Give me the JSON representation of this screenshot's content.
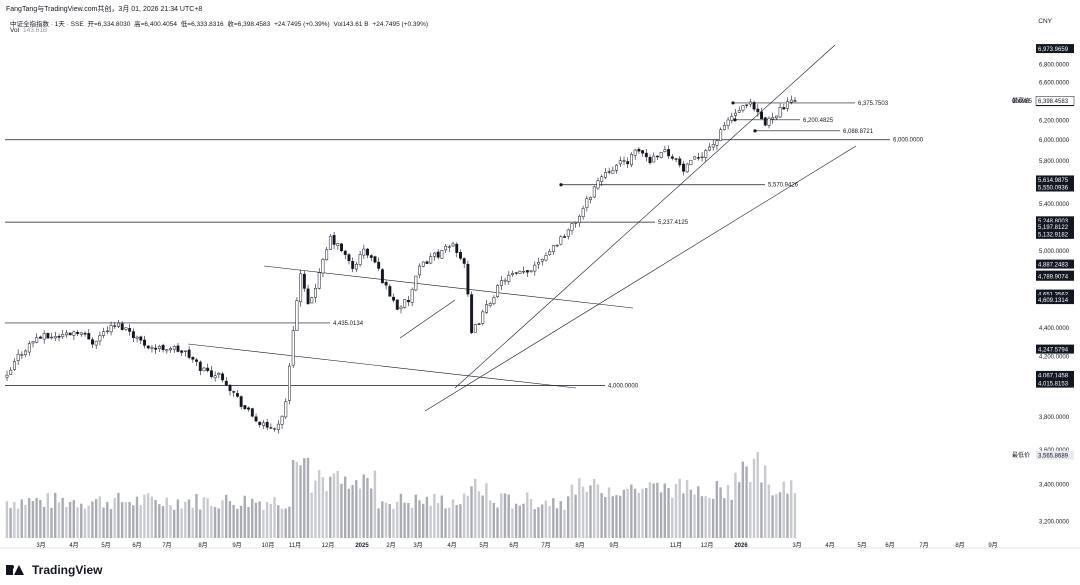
{
  "header": {
    "top_line": "FangTang与TradingView.com共创，3月 01, 2026 21:34 UTC+8",
    "instrument": "中证全指指数 · 1天 · SSE",
    "open": "开=6,334.8030",
    "high": "高=6,400.4054",
    "low": "低=6,333.8316",
    "close": "收=6,398.4583",
    "change": "+24.7495 (+0.39%)",
    "volume": "Vol143.61 B",
    "change2": "+24.7495 (+0.39%)",
    "vol_label": "Vol",
    "vol_value": "143.61B",
    "currency": "CNY"
  },
  "logo_text": "TradingView",
  "chart_data": {
    "type": "candlestick",
    "x_labels": [
      "3月",
      "4月",
      "5月",
      "6月",
      "7月",
      "8月",
      "9月",
      "10月",
      "11月",
      "12月",
      "2025",
      "2月",
      "3月",
      "4月",
      "5月",
      "6月",
      "7月",
      "8月",
      "9月",
      "11月",
      "12月",
      "2026",
      "3月",
      "4月",
      "5月",
      "6月",
      "7月",
      "8月",
      "9月"
    ],
    "y_ticks": [
      "6,800.0000",
      "6,600.0000",
      "6,200.0000",
      "6,000.0000",
      "5,800.0000",
      "5,400.0000",
      "5,000.0000",
      "4,400.0000",
      "4,200.0000",
      "3,800.0000",
      "3,600.0000",
      "3,400.0000",
      "3,200.0000"
    ],
    "ylim": [
      3100,
      7050
    ],
    "axis_badges": [
      {
        "label": "6,973.9659",
        "dark": true
      },
      {
        "label": "6,389.7554",
        "dark": true
      },
      {
        "label": "5,614.9875",
        "dark": true
      },
      {
        "label": "5,550.0936",
        "dark": true
      },
      {
        "label": "5,248.8003",
        "dark": true
      },
      {
        "label": "5,197.8122",
        "dark": true
      },
      {
        "label": "5,132.9182",
        "dark": true
      },
      {
        "label": "4,887.2483",
        "dark": true
      },
      {
        "label": "4,799.1779",
        "dark": true
      },
      {
        "label": "4,789.9074",
        "dark": true
      },
      {
        "label": "4,651.3562",
        "dark": true
      },
      {
        "label": "4,609.1314",
        "dark": true
      },
      {
        "label": "4,247.5794",
        "dark": true
      },
      {
        "label": "4,067.1458",
        "dark": true
      },
      {
        "label": "4,025.0859",
        "dark": true
      },
      {
        "label": "4,015.8153",
        "dark": true
      }
    ],
    "high_marker": {
      "label": "最高价",
      "value": "6,400.4054"
    },
    "last_marker": {
      "symbol": "000985",
      "value": "6,398.4583"
    },
    "low_marker": {
      "label": "最低价",
      "value": "3,565.8689"
    },
    "horizontal_lines": [
      {
        "value": 6000.0,
        "label": "6,000.0000"
      },
      {
        "value": 5237.4125,
        "label": "5,237.4125"
      },
      {
        "value": 4435.0134,
        "label": "4,435.0134"
      },
      {
        "value": 4000.0,
        "label": "4,000.0000"
      },
      {
        "value": 5570.9426,
        "label": "5,570.9426"
      },
      {
        "value": 6375.7503,
        "label": "6,375.7503"
      },
      {
        "value": 6200.4825,
        "label": "6,200.4825"
      },
      {
        "value": 6088.8721,
        "label": "6,088.8721"
      }
    ],
    "price_path": [
      [
        0,
        4050
      ],
      [
        3,
        4200
      ],
      [
        8,
        4330
      ],
      [
        14,
        4340
      ],
      [
        19,
        4380
      ],
      [
        23,
        4300
      ],
      [
        27,
        4390
      ],
      [
        30,
        4420
      ],
      [
        33,
        4380
      ],
      [
        36,
        4300
      ],
      [
        40,
        4250
      ],
      [
        44,
        4260
      ],
      [
        48,
        4220
      ],
      [
        52,
        4120
      ],
      [
        55,
        4080
      ],
      [
        58,
        4060
      ],
      [
        61,
        3950
      ],
      [
        64,
        3850
      ],
      [
        67,
        3780
      ],
      [
        70,
        3720
      ],
      [
        73,
        3750
      ],
      [
        75,
        3880
      ],
      [
        77,
        4400
      ],
      [
        79,
        4800
      ],
      [
        81,
        4550
      ],
      [
        84,
        4800
      ],
      [
        87,
        5100
      ],
      [
        90,
        5000
      ],
      [
        93,
        4850
      ],
      [
        96,
        5000
      ],
      [
        99,
        4900
      ],
      [
        102,
        4700
      ],
      [
        105,
        4550
      ],
      [
        108,
        4600
      ],
      [
        111,
        4850
      ],
      [
        114,
        4950
      ],
      [
        117,
        4980
      ],
      [
        120,
        5050
      ],
      [
        123,
        4900
      ],
      [
        125,
        4350
      ],
      [
        128,
        4500
      ],
      [
        131,
        4650
      ],
      [
        134,
        4780
      ],
      [
        137,
        4800
      ],
      [
        140,
        4820
      ],
      [
        143,
        4920
      ],
      [
        146,
        5000
      ],
      [
        149,
        5100
      ],
      [
        152,
        5200
      ],
      [
        155,
        5350
      ],
      [
        158,
        5550
      ],
      [
        161,
        5700
      ],
      [
        164,
        5750
      ],
      [
        167,
        5800
      ],
      [
        170,
        5900
      ],
      [
        173,
        5800
      ],
      [
        176,
        5900
      ],
      [
        179,
        5850
      ],
      [
        182,
        5700
      ],
      [
        185,
        5800
      ],
      [
        188,
        5900
      ],
      [
        191,
        6000
      ],
      [
        194,
        6200
      ],
      [
        197,
        6300
      ],
      [
        200,
        6350
      ],
      [
        202,
        6250
      ],
      [
        204,
        6150
      ],
      [
        206,
        6250
      ],
      [
        209,
        6330
      ],
      [
        212,
        6398
      ]
    ],
    "volume_note": "daily volume bars, peaks near 10月 2024 and 2026-01"
  }
}
